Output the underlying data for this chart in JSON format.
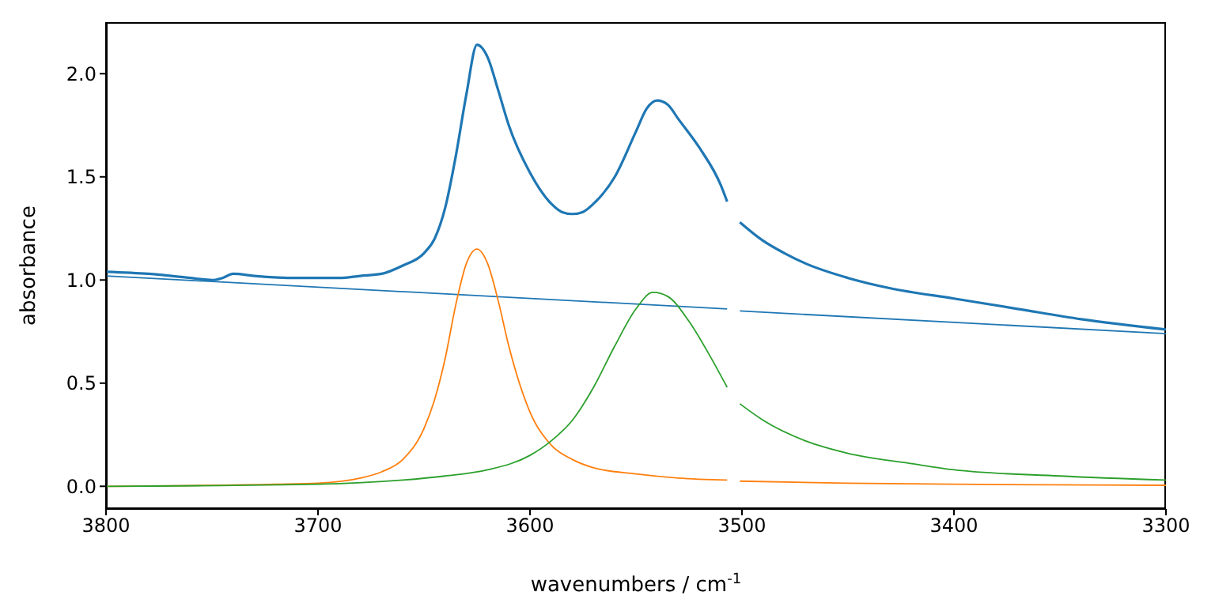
{
  "chart_data": {
    "type": "line",
    "xlabel": "wavenumbers / cm$^{-1}$",
    "ylabel": "absorbance",
    "xlim": [
      3800,
      3300
    ],
    "xticks": [
      3800,
      3700,
      3600,
      3500,
      3400,
      3300
    ],
    "ylim": [
      -0.11,
      2.25
    ],
    "yticks": [
      {
        "value": 0,
        "label": "0.0"
      },
      {
        "value": 0.5,
        "label": "0.5"
      },
      {
        "value": 1,
        "label": "1.0"
      },
      {
        "value": 1.5,
        "label": "1.5"
      },
      {
        "value": 2,
        "label": "2.0"
      }
    ],
    "marker": "none",
    "line_style": "solid",
    "series": [
      {
        "color": "#1f77b4",
        "x": [
          3800,
          3780,
          3760,
          3750,
          3745,
          3740,
          3730,
          3710,
          3700,
          3690,
          3680,
          3670,
          3660,
          3650,
          3645,
          3640,
          3635,
          3630,
          3625,
          3620,
          3615,
          3610,
          3600,
          3590,
          3585,
          3580,
          3575,
          3570,
          3560,
          3550,
          3545,
          3540,
          3535,
          3530,
          3520,
          3510,
          3507,
          3504,
          3501,
          3490,
          3480,
          3470,
          3450,
          3430,
          3400,
          3370,
          3340,
          3300
        ],
        "values": [
          1.04,
          1.03,
          1.01,
          1.0,
          1.01,
          1.03,
          1.02,
          1.01,
          1.01,
          1.01,
          1.02,
          1.03,
          1.07,
          1.13,
          1.2,
          1.35,
          1.6,
          1.9,
          2.14,
          2.08,
          1.92,
          1.75,
          1.52,
          1.37,
          1.33,
          1.32,
          1.33,
          1.37,
          1.5,
          1.72,
          1.83,
          1.87,
          1.85,
          1.78,
          1.64,
          1.46,
          1.38,
          null,
          1.28,
          1.19,
          1.13,
          1.08,
          1.01,
          0.96,
          0.91,
          0.86,
          0.81,
          0.76
        ]
      },
      {
        "color": "#1f77b4",
        "x": [
          3800,
          3507,
          3504,
          3501,
          3300
        ],
        "values": [
          1.02,
          0.86,
          null,
          0.85,
          0.74
        ]
      },
      {
        "color": "#ff7f0e",
        "x": [
          3800,
          3720,
          3700,
          3680,
          3670,
          3660,
          3650,
          3645,
          3640,
          3635,
          3630,
          3625,
          3620,
          3615,
          3610,
          3605,
          3600,
          3590,
          3580,
          3570,
          3550,
          3530,
          3507,
          3504,
          3501,
          3450,
          3400,
          3300
        ],
        "values": [
          0.0,
          0.01,
          0.015,
          0.04,
          0.07,
          0.13,
          0.28,
          0.42,
          0.62,
          0.88,
          1.08,
          1.15,
          1.08,
          0.9,
          0.68,
          0.5,
          0.36,
          0.2,
          0.13,
          0.09,
          0.06,
          0.04,
          0.03,
          null,
          0.025,
          0.015,
          0.01,
          0.005
        ]
      },
      {
        "color": "#2ca02c",
        "x": [
          3800,
          3700,
          3660,
          3640,
          3620,
          3600,
          3590,
          3580,
          3570,
          3560,
          3550,
          3542,
          3535,
          3525,
          3515,
          3507,
          3504,
          3501,
          3490,
          3470,
          3450,
          3420,
          3400,
          3350,
          3300
        ],
        "values": [
          0.0,
          0.01,
          0.03,
          0.05,
          0.08,
          0.15,
          0.22,
          0.32,
          0.48,
          0.68,
          0.86,
          0.94,
          0.92,
          0.8,
          0.63,
          0.48,
          null,
          0.4,
          0.32,
          0.22,
          0.16,
          0.11,
          0.08,
          0.05,
          0.03
        ]
      }
    ]
  }
}
